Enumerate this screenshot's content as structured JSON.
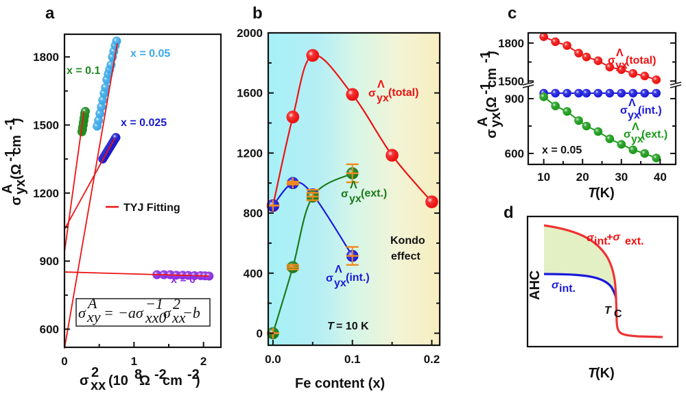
{
  "chart_data": [
    {
      "panel": "a",
      "type": "scatter",
      "xlabel": "σ_xx^2 (10^8 Ω^-2 cm^-2)",
      "ylabel": "σ_yx^A (Ω^-1 cm^-1)",
      "xlim": [
        0,
        2.25
      ],
      "ylim": [
        520,
        1900
      ],
      "xticks": [
        0,
        1,
        2
      ],
      "yticks": [
        600,
        900,
        1200,
        1500,
        1800
      ],
      "legend": "TYJ Fitting",
      "legend_color": "#ee1111",
      "equation": "σ_xy^A = −a σ_xx0^−1 σ_xx^2 − b",
      "series": [
        {
          "name": "x = 0.05",
          "color": "#3aa8e8",
          "x": [
            0.47,
            0.49,
            0.51,
            0.53,
            0.55,
            0.57,
            0.59,
            0.61,
            0.63,
            0.65,
            0.67,
            0.69,
            0.71,
            0.73,
            0.75
          ],
          "y": [
            1495,
            1520,
            1550,
            1580,
            1610,
            1640,
            1665,
            1700,
            1725,
            1745,
            1765,
            1800,
            1825,
            1850,
            1870
          ],
          "fit": {
            "x0": 0,
            "y0": 515,
            "x1": 0.76,
            "y1": 1860
          }
        },
        {
          "name": "x = 0.1",
          "color": "#1e8a1e",
          "x": [
            0.25,
            0.26,
            0.26,
            0.27,
            0.27,
            0.28,
            0.28,
            0.29,
            0.29,
            0.3
          ],
          "y": [
            1470,
            1480,
            1490,
            1500,
            1510,
            1520,
            1530,
            1540,
            1550,
            1560
          ],
          "fit": {
            "x0": 0,
            "y0": 940,
            "x1": 0.28,
            "y1": 1560
          }
        },
        {
          "name": "x = 0.025",
          "color": "#1a1acc",
          "x": [
            0.55,
            0.57,
            0.59,
            0.61,
            0.63,
            0.65,
            0.67,
            0.69,
            0.71,
            0.73,
            0.74
          ],
          "y": [
            1350,
            1360,
            1370,
            1380,
            1390,
            1400,
            1410,
            1420,
            1430,
            1440,
            1445
          ],
          "fit": {
            "x0": 0,
            "y0": 1040,
            "x1": 0.72,
            "y1": 1440
          }
        },
        {
          "name": "x = 0",
          "color": "#8a2be2",
          "x": [
            1.33,
            1.43,
            1.52,
            1.61,
            1.7,
            1.78,
            1.87,
            1.96,
            2.02,
            2.08
          ],
          "y": [
            840,
            840,
            840,
            838,
            838,
            837,
            836,
            836,
            835,
            834
          ],
          "fit": {
            "x0": 0,
            "y0": 852,
            "x1": 2.08,
            "y1": 834
          }
        }
      ],
      "labels": {
        "x005": "x = 0.05",
        "x01": "x = 0.1",
        "x0025": "x = 0.025",
        "x0": "x = 0"
      }
    },
    {
      "panel": "b",
      "type": "line",
      "xlabel": "Fe content (x)",
      "ylabel": "",
      "xlim": [
        -0.006,
        0.21
      ],
      "ylim": [
        -80,
        2000
      ],
      "xticks": [
        0.0,
        0.1,
        0.2
      ],
      "xtick_labels": [
        "0.0",
        "0.1",
        "0.2"
      ],
      "yticks": [
        0,
        400,
        800,
        1200,
        1600,
        2000
      ],
      "background_gradient": [
        "#a8f0f8",
        "#b8f0f4",
        "#d8f6e8",
        "#f4f4d4",
        "#f8f0c0"
      ],
      "series": [
        {
          "name": "σ_yx^A (total)",
          "color": "#ee1111",
          "x": [
            0,
            0.025,
            0.05,
            0.1,
            0.15,
            0.2
          ],
          "y": [
            850,
            1440,
            1850,
            1590,
            1185,
            875
          ]
        },
        {
          "name": "σ_yx^A (int.)",
          "color": "#1a1adc",
          "x": [
            0,
            0.025,
            0.05,
            0.1
          ],
          "y": [
            850,
            1000,
            925,
            515
          ],
          "err": [
            0,
            10,
            30,
            60
          ]
        },
        {
          "name": "σ_yx^A (ext.)",
          "color": "#1a7a1a",
          "x": [
            0,
            0.025,
            0.05,
            0.1
          ],
          "y": [
            0,
            440,
            910,
            1065
          ],
          "err": [
            0,
            15,
            25,
            60
          ]
        }
      ],
      "error_bar_color": "#f08a1a",
      "annotations": {
        "total": "(total)",
        "ext": "(ext.)",
        "int": "(int.)",
        "kondo_1": "Kondo",
        "kondo_2": "effect",
        "temp": "= 10 K",
        "temp_T": "T"
      }
    },
    {
      "panel": "c",
      "type": "line",
      "xlabel": "T (K)",
      "ylabel": "σ_yx^A (Ω^-1 cm^-1)",
      "xlim": [
        6,
        44
      ],
      "ylim_upper": [
        1480,
        1880
      ],
      "ylim_lower": [
        540,
        960
      ],
      "broken_axis": true,
      "xticks": [
        10,
        20,
        30,
        40
      ],
      "yticks": [
        1800,
        1500,
        900,
        600
      ],
      "series": [
        {
          "name": "σ_yx^A (total)",
          "color": "#ee1111",
          "x": [
            10,
            13,
            16,
            19,
            21,
            24,
            27,
            30,
            33,
            36,
            39
          ],
          "y": [
            1850,
            1810,
            1780,
            1720,
            1690,
            1660,
            1610,
            1590,
            1560,
            1540,
            1510
          ]
        },
        {
          "name": "σ_yx^A (int.)",
          "color": "#1a1adc",
          "x": [
            10,
            13,
            16,
            19,
            21,
            24,
            27,
            30,
            33,
            36,
            39
          ],
          "y": [
            930,
            930,
            930,
            930,
            930,
            930,
            930,
            930,
            930,
            930,
            930
          ]
        },
        {
          "name": "σ_yx^A (ext.)",
          "color": "#1a9a1a",
          "x": [
            10,
            13,
            16,
            19,
            21,
            24,
            27,
            30,
            33,
            36,
            39
          ],
          "y": [
            910,
            860,
            830,
            780,
            750,
            720,
            680,
            650,
            620,
            600,
            575
          ]
        }
      ],
      "annotations": {
        "sample": "x = 0.05",
        "total": "(total)",
        "int": "(int.)",
        "ext": "(ext.)"
      }
    },
    {
      "panel": "d",
      "type": "line",
      "xlabel": "T (K)",
      "ylabel": "AHC",
      "schematic": true,
      "series": [
        {
          "name": "σint.+σext.",
          "color": "#ee3333"
        },
        {
          "name": "σint.",
          "color": "#1a1adc"
        }
      ],
      "fill_color": "#e2f0c4",
      "annotations": {
        "tc": "T",
        "tc_sub": "C",
        "total_sigma": "σ",
        "total_int": "int.",
        "total_plus": "+σ",
        "total_ext": "ext.",
        "int_sigma": "σ",
        "int_sub": "int."
      }
    }
  ],
  "panel_letters": {
    "a": "a",
    "b": "b",
    "c": "c",
    "d": "d"
  },
  "axis_text": {
    "sigma": "σ",
    "yx": "yx",
    "A": "A",
    "lambda": "Λ",
    "xx": "xx",
    "omega_unit": "(Ω",
    "cm": " cm",
    "close": ")",
    "a_x_unit": "(10",
    "a_x_8": "8",
    "a_x_omega": " Ω",
    "a_x_m2": "-2",
    "a_x_cm": " cm",
    "m1": "-1",
    "two": "2",
    "fe": "Fe content (x)",
    "T": "T",
    "K": " (K)",
    "ahc": "AHC"
  },
  "equation_parts": {
    "lhs": "σ",
    "lhs_sub": "xy",
    "lhs_sup": "A",
    "eq": "=",
    "mid": "−aσ",
    "sub1": "xx0",
    "sup1": "−1",
    "s2": "σ",
    "sub2": "xx",
    "sup2": "2",
    "tail": "−b"
  }
}
